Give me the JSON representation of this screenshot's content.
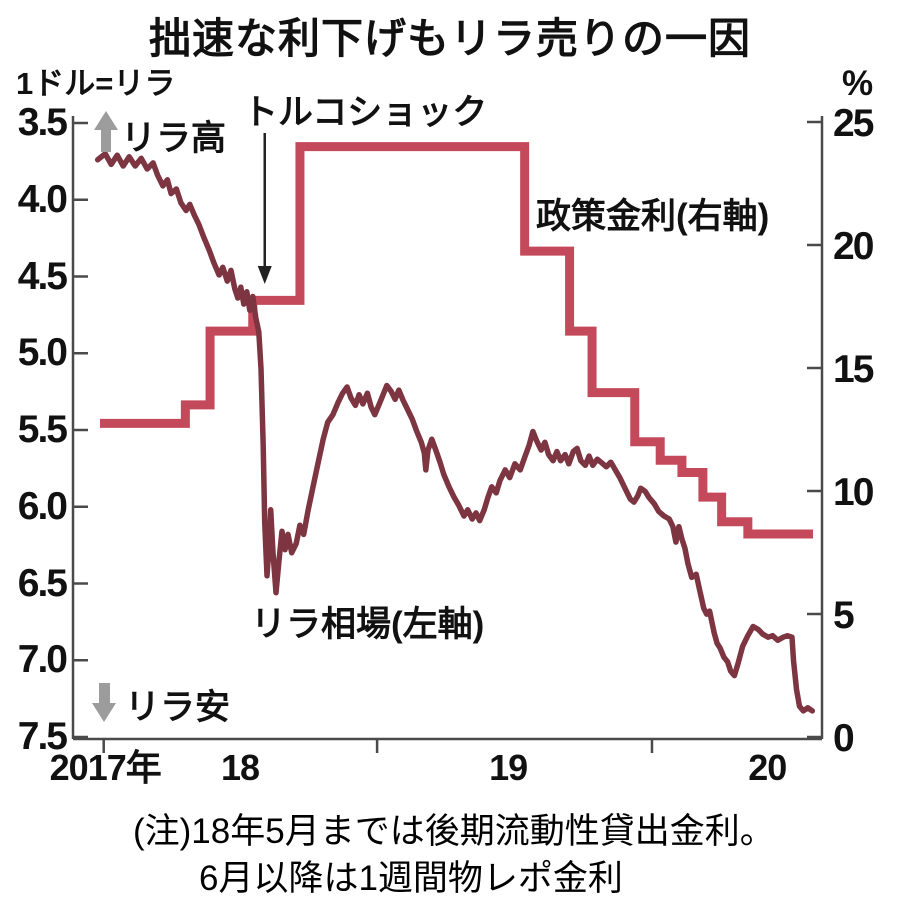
{
  "title": "拙速な利下げもリラ売りの一因",
  "left_axis_unit": "1ドル=リラ",
  "right_axis_unit": "%",
  "annotations": {
    "turkey_shock": "トルコショック",
    "policy_series_label": "政策金利(右軸)",
    "lira_series_label": "リラ相場(左軸)",
    "lira_high": "リラ高",
    "lira_low": "リラ安"
  },
  "notes": {
    "line1": "(注)18年5月までは後期流動性貸出金利。",
    "line2": "6月以降は1週間物レポ金利"
  },
  "colors": {
    "lira_line": "#7d3541",
    "policy_line": "#c4495a",
    "axis": "#4a4a4a",
    "gray_arrow": "#9c9c9c",
    "text": "#111111"
  },
  "chart_data": {
    "type": "line",
    "title": "拙速な利下げもリラ売りの一因",
    "left_axis": {
      "unit": "1ドル=リラ",
      "inverted": true,
      "range": [
        3.5,
        7.5
      ],
      "ticks": [
        3.5,
        4.0,
        4.5,
        5.0,
        5.5,
        6.0,
        6.5,
        7.0,
        7.5
      ]
    },
    "right_axis": {
      "unit": "%",
      "range": [
        0,
        25
      ],
      "ticks": [
        25,
        20,
        15,
        10,
        5,
        0
      ]
    },
    "x_axis": {
      "tick_positions_t": [
        0.041,
        0.406,
        0.773
      ],
      "labels": [
        {
          "text": "2017年",
          "t": 0.043
        },
        {
          "text": "18",
          "t": 0.223
        },
        {
          "text": "19",
          "t": 0.581
        },
        {
          "text": "20",
          "t": 0.927
        }
      ]
    },
    "grid": false,
    "legend_position": "inline-annotations",
    "series": [
      {
        "name": "リラ相場(左軸)",
        "axis": "left",
        "type": "line",
        "points": [
          [
            0.033,
            3.74
          ],
          [
            0.043,
            3.7
          ],
          [
            0.051,
            3.77
          ],
          [
            0.059,
            3.71
          ],
          [
            0.067,
            3.78
          ],
          [
            0.075,
            3.72
          ],
          [
            0.083,
            3.78
          ],
          [
            0.091,
            3.73
          ],
          [
            0.099,
            3.8
          ],
          [
            0.107,
            3.76
          ],
          [
            0.113,
            3.84
          ],
          [
            0.12,
            3.91
          ],
          [
            0.126,
            3.87
          ],
          [
            0.131,
            3.96
          ],
          [
            0.138,
            3.93
          ],
          [
            0.144,
            4.02
          ],
          [
            0.151,
            4.07
          ],
          [
            0.156,
            4.03
          ],
          [
            0.162,
            4.1
          ],
          [
            0.168,
            4.16
          ],
          [
            0.175,
            4.25
          ],
          [
            0.182,
            4.33
          ],
          [
            0.188,
            4.41
          ],
          [
            0.195,
            4.49
          ],
          [
            0.2,
            4.44
          ],
          [
            0.206,
            4.53
          ],
          [
            0.211,
            4.46
          ],
          [
            0.216,
            4.58
          ],
          [
            0.22,
            4.64
          ],
          [
            0.224,
            4.57
          ],
          [
            0.228,
            4.68
          ],
          [
            0.232,
            4.6
          ],
          [
            0.236,
            4.72
          ],
          [
            0.24,
            4.63
          ],
          [
            0.244,
            4.77
          ],
          [
            0.248,
            4.86
          ],
          [
            0.251,
            5.1
          ],
          [
            0.254,
            5.6
          ],
          [
            0.256,
            6.1
          ],
          [
            0.259,
            6.45
          ],
          [
            0.262,
            6.25
          ],
          [
            0.264,
            6.02
          ],
          [
            0.267,
            6.3
          ],
          [
            0.271,
            6.56
          ],
          [
            0.275,
            6.35
          ],
          [
            0.279,
            6.16
          ],
          [
            0.283,
            6.28
          ],
          [
            0.287,
            6.18
          ],
          [
            0.292,
            6.3
          ],
          [
            0.298,
            6.24
          ],
          [
            0.303,
            6.12
          ],
          [
            0.308,
            6.18
          ],
          [
            0.314,
            6.02
          ],
          [
            0.32,
            5.88
          ],
          [
            0.327,
            5.72
          ],
          [
            0.334,
            5.56
          ],
          [
            0.34,
            5.45
          ],
          [
            0.347,
            5.4
          ],
          [
            0.354,
            5.32
          ],
          [
            0.36,
            5.26
          ],
          [
            0.366,
            5.22
          ],
          [
            0.371,
            5.29
          ],
          [
            0.377,
            5.34
          ],
          [
            0.382,
            5.27
          ],
          [
            0.387,
            5.33
          ],
          [
            0.393,
            5.26
          ],
          [
            0.398,
            5.35
          ],
          [
            0.403,
            5.4
          ],
          [
            0.409,
            5.33
          ],
          [
            0.414,
            5.27
          ],
          [
            0.419,
            5.21
          ],
          [
            0.425,
            5.25
          ],
          [
            0.43,
            5.3
          ],
          [
            0.435,
            5.24
          ],
          [
            0.441,
            5.31
          ],
          [
            0.446,
            5.36
          ],
          [
            0.453,
            5.43
          ],
          [
            0.459,
            5.51
          ],
          [
            0.465,
            5.58
          ],
          [
            0.469,
            5.65
          ],
          [
            0.471,
            5.76
          ],
          [
            0.474,
            5.63
          ],
          [
            0.479,
            5.56
          ],
          [
            0.485,
            5.64
          ],
          [
            0.49,
            5.71
          ],
          [
            0.495,
            5.79
          ],
          [
            0.502,
            5.87
          ],
          [
            0.509,
            5.94
          ],
          [
            0.515,
            5.99
          ],
          [
            0.522,
            6.06
          ],
          [
            0.527,
            6.02
          ],
          [
            0.533,
            6.08
          ],
          [
            0.538,
            6.04
          ],
          [
            0.543,
            6.09
          ],
          [
            0.549,
            6.02
          ],
          [
            0.554,
            5.94
          ],
          [
            0.559,
            5.87
          ],
          [
            0.565,
            5.91
          ],
          [
            0.57,
            5.83
          ],
          [
            0.577,
            5.76
          ],
          [
            0.583,
            5.81
          ],
          [
            0.59,
            5.72
          ],
          [
            0.597,
            5.76
          ],
          [
            0.603,
            5.68
          ],
          [
            0.609,
            5.6
          ],
          [
            0.614,
            5.51
          ],
          [
            0.619,
            5.57
          ],
          [
            0.625,
            5.63
          ],
          [
            0.63,
            5.58
          ],
          [
            0.635,
            5.66
          ],
          [
            0.641,
            5.7
          ],
          [
            0.646,
            5.64
          ],
          [
            0.651,
            5.7
          ],
          [
            0.657,
            5.66
          ],
          [
            0.662,
            5.72
          ],
          [
            0.668,
            5.64
          ],
          [
            0.673,
            5.62
          ],
          [
            0.678,
            5.7
          ],
          [
            0.684,
            5.73
          ],
          [
            0.689,
            5.67
          ],
          [
            0.694,
            5.73
          ],
          [
            0.7,
            5.69
          ],
          [
            0.705,
            5.71
          ],
          [
            0.712,
            5.74
          ],
          [
            0.718,
            5.71
          ],
          [
            0.724,
            5.76
          ],
          [
            0.73,
            5.81
          ],
          [
            0.737,
            5.88
          ],
          [
            0.744,
            5.95
          ],
          [
            0.749,
            5.97
          ],
          [
            0.754,
            5.93
          ],
          [
            0.758,
            5.88
          ],
          [
            0.764,
            5.9
          ],
          [
            0.769,
            5.94
          ],
          [
            0.776,
            5.98
          ],
          [
            0.782,
            6.03
          ],
          [
            0.789,
            6.06
          ],
          [
            0.796,
            6.08
          ],
          [
            0.801,
            6.13
          ],
          [
            0.805,
            6.23
          ],
          [
            0.809,
            6.13
          ],
          [
            0.813,
            6.21
          ],
          [
            0.817,
            6.27
          ],
          [
            0.821,
            6.37
          ],
          [
            0.826,
            6.46
          ],
          [
            0.832,
            6.44
          ],
          [
            0.837,
            6.55
          ],
          [
            0.842,
            6.66
          ],
          [
            0.846,
            6.7
          ],
          [
            0.85,
            6.68
          ],
          [
            0.856,
            6.82
          ],
          [
            0.86,
            6.89
          ],
          [
            0.864,
            6.92
          ],
          [
            0.869,
            6.98
          ],
          [
            0.874,
            7.01
          ],
          [
            0.878,
            7.07
          ],
          [
            0.883,
            7.1
          ],
          [
            0.888,
            7.02
          ],
          [
            0.894,
            6.91
          ],
          [
            0.901,
            6.84
          ],
          [
            0.908,
            6.78
          ],
          [
            0.915,
            6.8
          ],
          [
            0.921,
            6.83
          ],
          [
            0.928,
            6.85
          ],
          [
            0.934,
            6.84
          ],
          [
            0.941,
            6.87
          ],
          [
            0.948,
            6.85
          ],
          [
            0.954,
            6.84
          ],
          [
            0.96,
            6.85
          ],
          [
            0.962,
            7.0
          ],
          [
            0.966,
            7.19
          ],
          [
            0.97,
            7.3
          ],
          [
            0.975,
            7.33
          ],
          [
            0.981,
            7.31
          ],
          [
            0.987,
            7.33
          ]
        ]
      },
      {
        "name": "政策金利(右軸)",
        "axis": "right",
        "type": "step",
        "steps": [
          {
            "t0": 0.036,
            "t1": 0.15,
            "rate": 12.75
          },
          {
            "t0": 0.15,
            "t1": 0.183,
            "rate": 13.5
          },
          {
            "t0": 0.183,
            "t1": 0.24,
            "rate": 16.5
          },
          {
            "t0": 0.24,
            "t1": 0.303,
            "rate": 17.75
          },
          {
            "t0": 0.303,
            "t1": 0.603,
            "rate": 24
          },
          {
            "t0": 0.603,
            "t1": 0.663,
            "rate": 19.75
          },
          {
            "t0": 0.663,
            "t1": 0.693,
            "rate": 16.5
          },
          {
            "t0": 0.693,
            "t1": 0.75,
            "rate": 14
          },
          {
            "t0": 0.75,
            "t1": 0.784,
            "rate": 12
          },
          {
            "t0": 0.784,
            "t1": 0.813,
            "rate": 11.25
          },
          {
            "t0": 0.813,
            "t1": 0.841,
            "rate": 10.75
          },
          {
            "t0": 0.841,
            "t1": 0.866,
            "rate": 9.75
          },
          {
            "t0": 0.866,
            "t1": 0.901,
            "rate": 8.75
          },
          {
            "t0": 0.901,
            "t1": 0.988,
            "rate": 8.25
          }
        ]
      }
    ],
    "event_annotation": {
      "label": "トルコショック",
      "arrow_t": 0.256
    }
  }
}
